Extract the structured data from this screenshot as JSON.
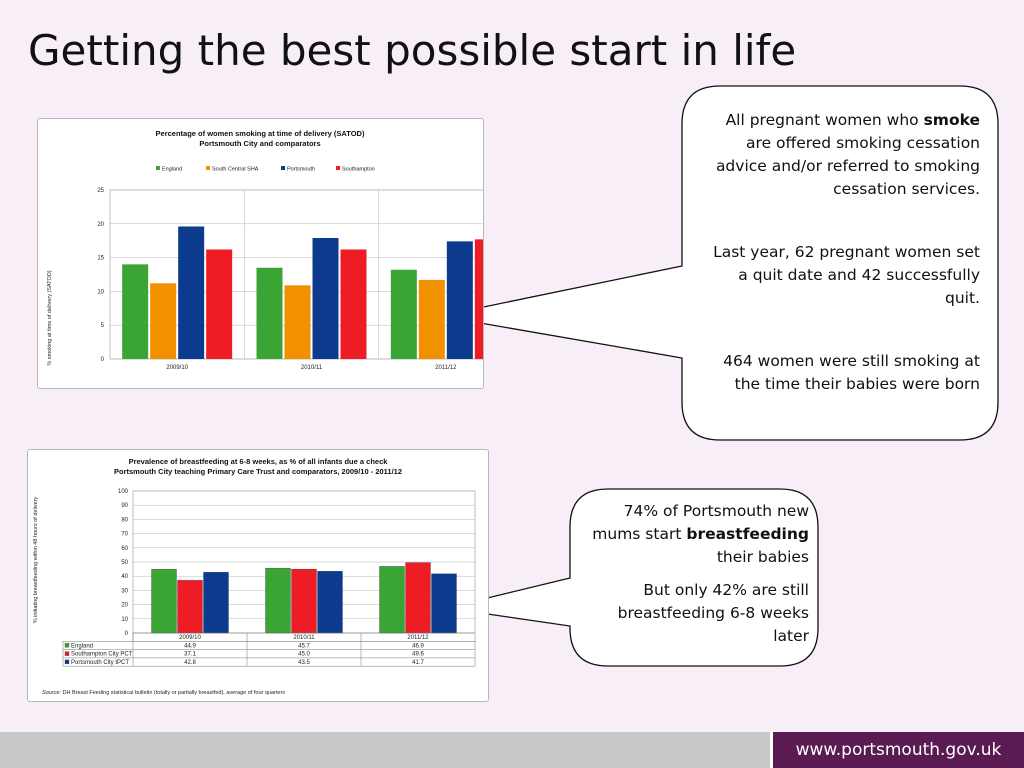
{
  "slide_title": "Getting the best possible start in life",
  "callout1": {
    "p1_before": "All pregnant women who ",
    "p1_bold": "smoke",
    "p1_after": " are offered smoking cessation advice and/or referred to smoking cessation services.",
    "p2": "Last year, 62 pregnant women set a quit date and 42 successfully quit.",
    "p3": "464 women were still smoking at the time their babies were born"
  },
  "callout2": {
    "p1_before": "74% of Portsmouth new mums start ",
    "p1_bold": "breastfeeding",
    "p1_after": " their babies",
    "p2": "But only 42% are still breastfeeding 6-8 weeks later"
  },
  "footer": {
    "website": "www.portsmouth.gov.uk"
  },
  "colors": {
    "background": "#f7eef7",
    "footer_brand": "#5a1a52",
    "footer_grey": "#c8c8c8"
  },
  "chart_data": [
    {
      "type": "bar",
      "title": "Percentage of women smoking at time of delivery (SATOD)",
      "subtitle": "Portsmouth City and comparators",
      "ylabel": "% smoking at time of delivery (SATOD)",
      "xlabel": "",
      "categories": [
        "2009/10",
        "2010/11",
        "2011/12"
      ],
      "ylim": [
        0,
        25
      ],
      "yticks": [
        0,
        5,
        10,
        15,
        20,
        25
      ],
      "legend_position": "top",
      "grid": true,
      "series": [
        {
          "name": "England",
          "color": "#3aa535",
          "values": [
            14.0,
            13.5,
            13.2
          ]
        },
        {
          "name": "South Central SHA",
          "color": "#f29100",
          "values": [
            11.2,
            10.9,
            11.7
          ]
        },
        {
          "name": "Portsmouth",
          "color": "#0b3a8f",
          "values": [
            19.6,
            17.9,
            17.4
          ]
        },
        {
          "name": "Southampton",
          "color": "#ee1c25",
          "values": [
            16.2,
            16.2,
            17.7
          ]
        }
      ]
    },
    {
      "type": "bar",
      "title": "Prevalence of breastfeeding at 6-8 weeks, as % of all infants due a check",
      "subtitle": "Portsmouth City teaching Primary Care Trust and comparators, 2009/10 - 2011/12",
      "ylabel": "% initiating breastfeeding within 48 hours of delivery",
      "xlabel": "",
      "categories": [
        "2009/10",
        "2010/11",
        "2011/12"
      ],
      "ylim": [
        0,
        100
      ],
      "yticks": [
        0,
        10,
        20,
        30,
        40,
        50,
        60,
        70,
        80,
        90,
        100
      ],
      "legend_position": "data table below",
      "grid": true,
      "series": [
        {
          "name": "England",
          "color": "#3aa535",
          "values": [
            44.9,
            45.7,
            46.9
          ],
          "labels": [
            "44.9",
            "45.7",
            "46.9"
          ]
        },
        {
          "name": "Southampton City PCT",
          "color": "#ee1c25",
          "values": [
            37.1,
            45.0,
            49.6
          ],
          "labels": [
            "37.1",
            "45.0",
            "49.6"
          ]
        },
        {
          "name": "Portsmouth City tPCT",
          "color": "#0b3a8f",
          "values": [
            42.8,
            43.5,
            41.7
          ],
          "labels": [
            "42.8",
            "43.5",
            "41.7"
          ]
        }
      ],
      "source_label": "Source:",
      "source": " DH Breast Feeding statistical bulletin (totally or partially breastfed), average of four quarters"
    }
  ]
}
